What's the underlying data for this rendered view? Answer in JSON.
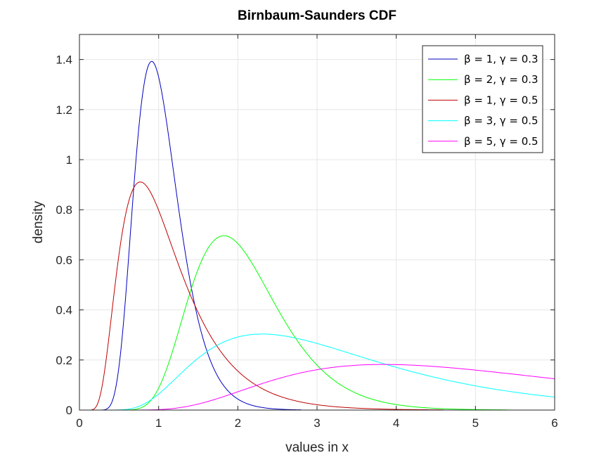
{
  "chart_data": {
    "type": "line",
    "title": "Birnbaum-Saunders CDF",
    "xlabel": "values in x",
    "ylabel": "density",
    "xlim": [
      0,
      6
    ],
    "ylim": [
      0,
      1.5
    ],
    "xticks": [
      0,
      1,
      2,
      3,
      4,
      5,
      6
    ],
    "xtick_labels": [
      "0",
      "1",
      "2",
      "3",
      "4",
      "5",
      "6"
    ],
    "yticks": [
      0,
      0.2,
      0.4,
      0.6,
      0.8,
      1,
      1.2,
      1.4
    ],
    "ytick_labels": [
      "0",
      "0.2",
      "0.4",
      "0.6",
      "0.8",
      "1",
      "1.2",
      "1.4"
    ],
    "grid": true,
    "legend_position": "top-right",
    "series": [
      {
        "name": "β = 1, γ = 0.3",
        "beta": 1,
        "gamma": 0.3,
        "color": "#0000bf",
        "x_range": [
          0.01,
          2.8
        ]
      },
      {
        "name": "β = 2, γ = 0.3",
        "beta": 2,
        "gamma": 0.3,
        "color": "#00ff00",
        "x_range": [
          0.01,
          5.4
        ]
      },
      {
        "name": "β = 1, γ = 0.5",
        "beta": 1,
        "gamma": 0.5,
        "color": "#bf0000",
        "x_range": [
          0.01,
          4.6
        ]
      },
      {
        "name": "β = 3, γ = 0.5",
        "beta": 3,
        "gamma": 0.5,
        "color": "#00ffff",
        "x_range": [
          0.01,
          6
        ]
      },
      {
        "name": "β = 5, γ = 0.5",
        "beta": 5,
        "gamma": 0.5,
        "color": "#ff00ff",
        "x_range": [
          0.01,
          6
        ]
      }
    ]
  }
}
